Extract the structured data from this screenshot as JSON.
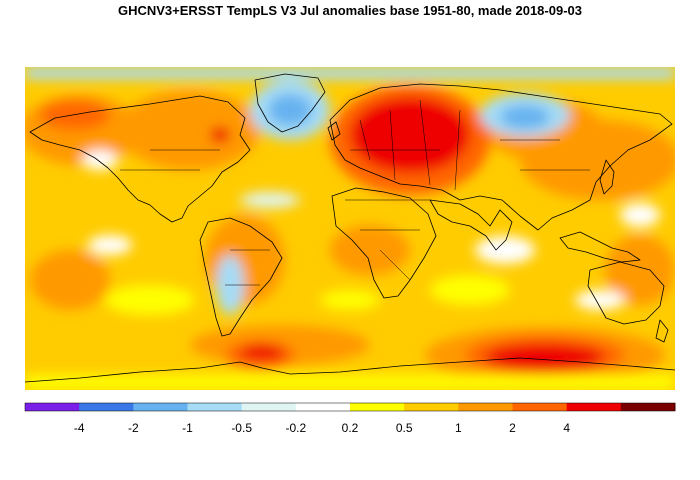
{
  "title": "GHCNV3+ERSST TempLS V3 Jul anomalies base 1951-80, made 2018-09-03",
  "legend": {
    "colors": [
      "#7a1fe8",
      "#3a78e8",
      "#66b2f0",
      "#a6dcf6",
      "#dff5f3",
      "#ffffff",
      "#ffff00",
      "#ffcc00",
      "#ff9900",
      "#ff6600",
      "#ee0000",
      "#7a0000"
    ],
    "labels": [
      "-4",
      "-2",
      "-1",
      "-0.5",
      "-0.2",
      "0.2",
      "0.5",
      "1",
      "2",
      "4"
    ]
  },
  "colors": {
    "ocean_base": "#ffcc00",
    "warm": "#ff9900",
    "hot": "#ff6600",
    "very_hot": "#ee0000",
    "neutral": "#ffffff",
    "cool": "#dff5f3",
    "cold": "#a6dcf6",
    "colder": "#66b2f0",
    "mild": "#ffff00"
  }
}
